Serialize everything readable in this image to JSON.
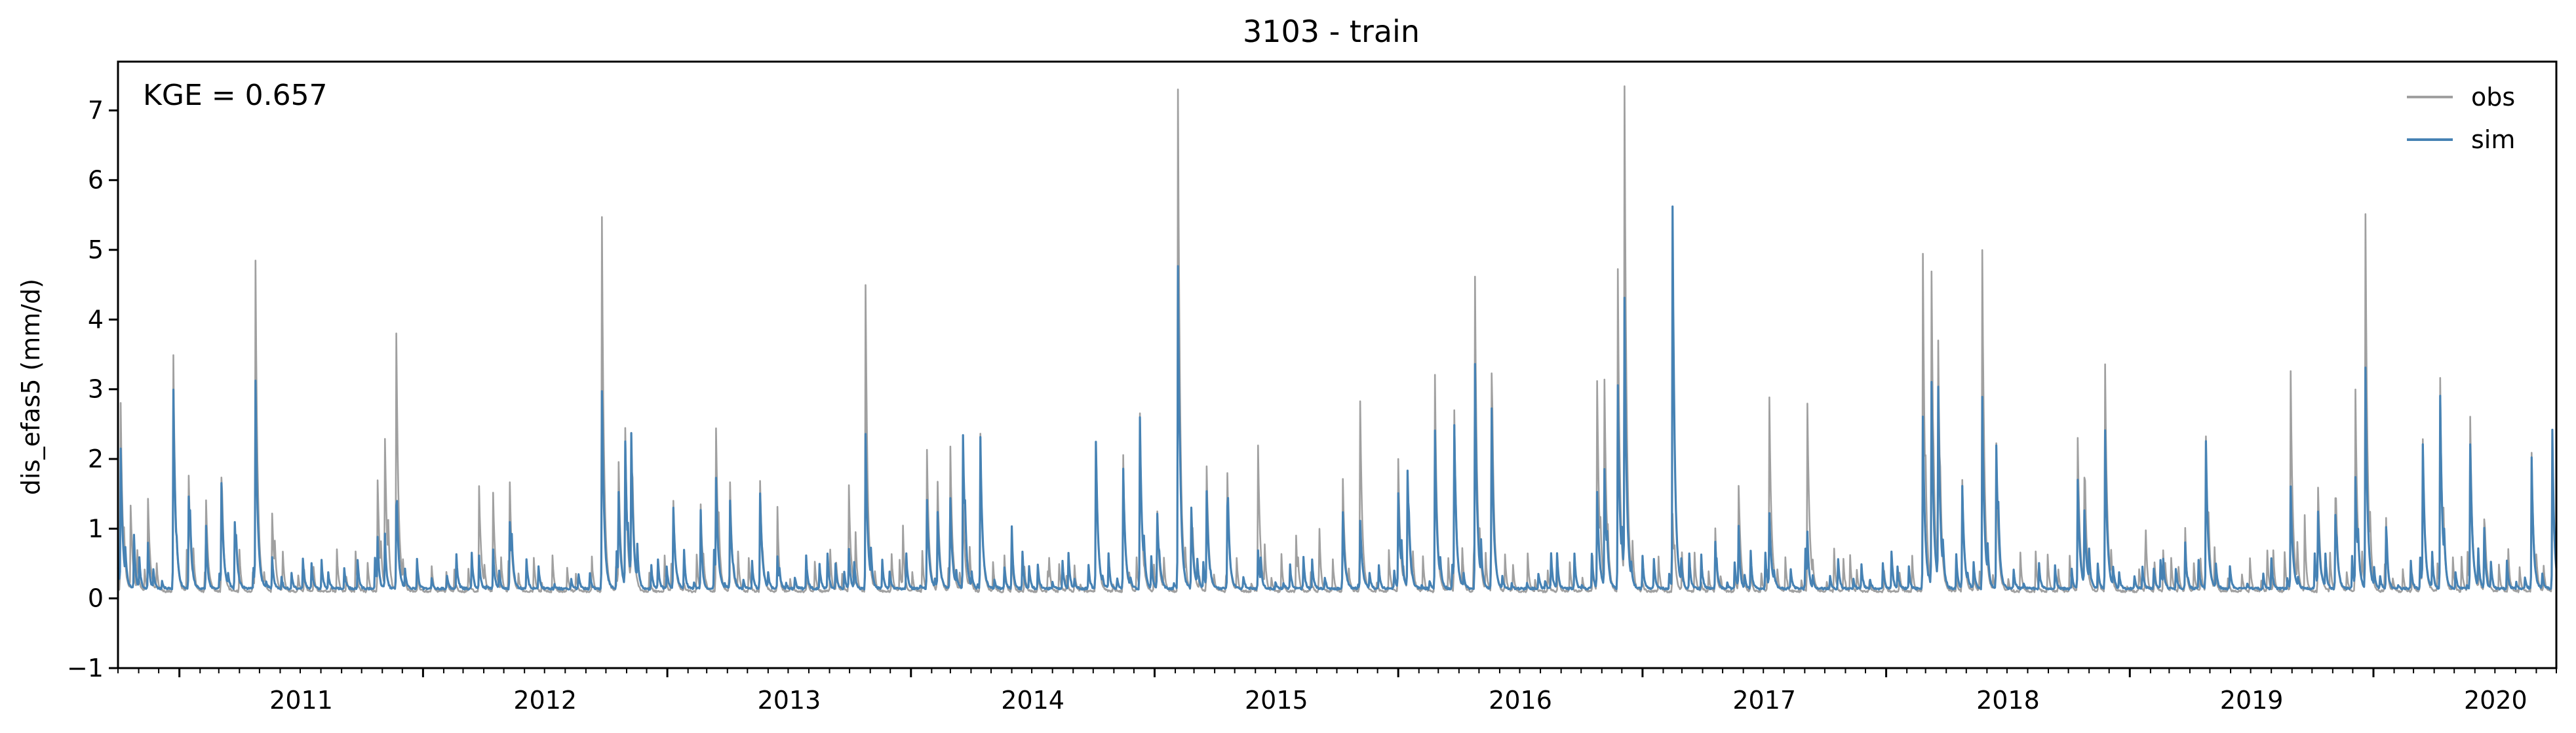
{
  "chart_data": {
    "type": "line",
    "title": "3103 - train",
    "xlabel": "",
    "ylabel": "dis_efas5 (mm/d)",
    "annotation": "KGE = 0.657",
    "legend_position": "top-right",
    "grid": false,
    "xlim": [
      "2010-10-01",
      "2020-10-01"
    ],
    "ylim": [
      -1,
      7.7
    ],
    "x_ticks": [
      "2011",
      "2012",
      "2013",
      "2014",
      "2015",
      "2016",
      "2017",
      "2018",
      "2019",
      "2020"
    ],
    "y_ticks": [
      "−1",
      "0",
      "1",
      "2",
      "3",
      "4",
      "5",
      "6",
      "7"
    ],
    "baseline": {
      "obs": 0.1,
      "sim": 0.14
    },
    "series": [
      {
        "name": "obs",
        "color": "#a0a0a0",
        "peaks": [
          [
            "2010-10-05",
            2.8
          ],
          [
            "2010-10-20",
            1.3
          ],
          [
            "2010-11-15",
            1.4
          ],
          [
            "2010-12-23",
            3.45
          ],
          [
            "2011-01-15",
            1.6
          ],
          [
            "2011-02-10",
            1.3
          ],
          [
            "2011-03-05",
            1.7
          ],
          [
            "2011-04-25",
            4.8
          ],
          [
            "2011-05-20",
            1.2
          ],
          [
            "2011-06-05",
            0.6
          ],
          [
            "2011-08-25",
            0.7
          ],
          [
            "2011-10-25",
            1.7
          ],
          [
            "2011-11-05",
            2.2
          ],
          [
            "2011-11-22",
            3.8
          ],
          [
            "2012-03-25",
            1.6
          ],
          [
            "2012-04-15",
            1.5
          ],
          [
            "2012-05-10",
            1.5
          ],
          [
            "2012-09-25",
            4.97
          ],
          [
            "2012-10-20",
            1.9
          ],
          [
            "2012-10-30",
            2.35
          ],
          [
            "2012-11-08",
            2.25
          ],
          [
            "2013-01-10",
            1.3
          ],
          [
            "2013-02-20",
            1.3
          ],
          [
            "2013-03-15",
            2.45
          ],
          [
            "2013-04-05",
            1.6
          ],
          [
            "2013-05-20",
            1.7
          ],
          [
            "2013-06-15",
            0.8
          ],
          [
            "2013-09-30",
            1.3
          ],
          [
            "2013-10-10",
            0.9
          ],
          [
            "2013-10-25",
            3.9
          ],
          [
            "2013-12-20",
            1.0
          ],
          [
            "2014-01-25",
            2.1
          ],
          [
            "2014-02-10",
            1.4
          ],
          [
            "2014-03-01",
            2.1
          ],
          [
            "2014-03-20",
            1.4
          ],
          [
            "2014-04-15",
            2.3
          ],
          [
            "2014-06-01",
            0.6
          ],
          [
            "2014-07-25",
            0.4
          ],
          [
            "2014-10-05",
            2.2
          ],
          [
            "2014-11-15",
            1.7
          ],
          [
            "2014-12-10",
            2.6
          ],
          [
            "2015-01-05",
            1.2
          ],
          [
            "2015-02-05",
            7.3
          ],
          [
            "2015-02-25",
            1.3
          ],
          [
            "2015-03-20",
            1.9
          ],
          [
            "2015-04-20",
            1.7
          ],
          [
            "2015-06-05",
            2.2
          ],
          [
            "2015-08-01",
            0.9
          ],
          [
            "2015-09-05",
            0.9
          ],
          [
            "2015-10-10",
            1.7
          ],
          [
            "2015-11-05",
            2.65
          ],
          [
            "2016-01-01",
            2.0
          ],
          [
            "2016-01-15",
            1.8
          ],
          [
            "2016-02-25",
            2.7
          ],
          [
            "2016-03-25",
            2.7
          ],
          [
            "2016-04-25",
            4.4
          ],
          [
            "2016-05-20",
            3.2
          ],
          [
            "2016-10-25",
            3.1
          ],
          [
            "2016-11-05",
            3.0
          ],
          [
            "2016-11-25",
            4.5
          ],
          [
            "2016-12-05",
            7.0
          ],
          [
            "2017-02-15",
            1.2
          ],
          [
            "2017-04-20",
            1.0
          ],
          [
            "2017-05-25",
            1.6
          ],
          [
            "2017-07-10",
            2.8
          ],
          [
            "2017-09-05",
            2.8
          ],
          [
            "2017-10-15",
            0.7
          ],
          [
            "2018-02-25",
            4.95
          ],
          [
            "2018-03-10",
            4.6
          ],
          [
            "2018-03-20",
            3.5
          ],
          [
            "2018-04-25",
            1.7
          ],
          [
            "2018-05-25",
            4.95
          ],
          [
            "2018-06-15",
            2.2
          ],
          [
            "2018-10-15",
            2.3
          ],
          [
            "2018-10-25",
            1.6
          ],
          [
            "2018-11-25",
            3.35
          ],
          [
            "2019-01-25",
            0.7
          ],
          [
            "2019-02-20",
            0.7
          ],
          [
            "2019-03-25",
            1.0
          ],
          [
            "2019-04-25",
            2.3
          ],
          [
            "2019-08-30",
            3.25
          ],
          [
            "2019-09-20",
            1.0
          ],
          [
            "2019-10-10",
            1.6
          ],
          [
            "2019-11-05",
            1.4
          ],
          [
            "2019-12-05",
            3.0
          ],
          [
            "2019-12-20",
            5.45
          ],
          [
            "2020-01-20",
            1.0
          ],
          [
            "2020-03-15",
            2.2
          ],
          [
            "2020-04-10",
            3.1
          ],
          [
            "2020-05-25",
            2.5
          ],
          [
            "2020-06-15",
            1.1
          ],
          [
            "2020-08-25",
            2.1
          ],
          [
            "2020-09-25",
            2.0
          ]
        ]
      },
      {
        "name": "sim",
        "color": "#4682b4",
        "peaks": [
          [
            "2010-10-05",
            2.1
          ],
          [
            "2010-10-25",
            0.9
          ],
          [
            "2010-11-15",
            0.8
          ],
          [
            "2010-12-23",
            3.0
          ],
          [
            "2011-01-15",
            1.45
          ],
          [
            "2011-02-10",
            1.0
          ],
          [
            "2011-03-05",
            1.6
          ],
          [
            "2011-03-25",
            1.1
          ],
          [
            "2011-04-25",
            3.05
          ],
          [
            "2011-05-20",
            0.6
          ],
          [
            "2011-10-25",
            0.8
          ],
          [
            "2011-11-05",
            0.9
          ],
          [
            "2011-11-22",
            1.3
          ],
          [
            "2012-03-25",
            0.6
          ],
          [
            "2012-04-15",
            0.7
          ],
          [
            "2012-05-10",
            1.1
          ],
          [
            "2012-09-25",
            2.95
          ],
          [
            "2012-10-20",
            1.4
          ],
          [
            "2012-10-30",
            2.2
          ],
          [
            "2012-11-08",
            2.2
          ],
          [
            "2013-01-10",
            1.3
          ],
          [
            "2013-02-20",
            0.9
          ],
          [
            "2013-03-15",
            1.6
          ],
          [
            "2013-04-05",
            1.4
          ],
          [
            "2013-05-20",
            1.5
          ],
          [
            "2013-06-15",
            0.6
          ],
          [
            "2013-09-30",
            0.7
          ],
          [
            "2013-10-25",
            2.35
          ],
          [
            "2014-01-25",
            1.4
          ],
          [
            "2014-02-10",
            1.2
          ],
          [
            "2014-03-01",
            1.2
          ],
          [
            "2014-03-20",
            2.35
          ],
          [
            "2014-04-15",
            2.3
          ],
          [
            "2014-06-01",
            0.5
          ],
          [
            "2014-10-05",
            2.25
          ],
          [
            "2014-11-15",
            1.7
          ],
          [
            "2014-12-10",
            2.6
          ],
          [
            "2015-01-05",
            1.2
          ],
          [
            "2015-02-05",
            4.75
          ],
          [
            "2015-02-25",
            1.3
          ],
          [
            "2015-03-20",
            1.5
          ],
          [
            "2015-04-20",
            1.3
          ],
          [
            "2015-06-05",
            0.7
          ],
          [
            "2015-10-10",
            1.2
          ],
          [
            "2015-11-05",
            1.1
          ],
          [
            "2016-01-01",
            1.5
          ],
          [
            "2016-01-15",
            1.8
          ],
          [
            "2016-02-25",
            2.4
          ],
          [
            "2016-03-25",
            2.4
          ],
          [
            "2016-04-25",
            3.35
          ],
          [
            "2016-05-20",
            2.5
          ],
          [
            "2016-10-25",
            1.5
          ],
          [
            "2016-11-05",
            1.8
          ],
          [
            "2016-11-25",
            3.05
          ],
          [
            "2016-12-05",
            4.1
          ],
          [
            "2017-02-15",
            5.6
          ],
          [
            "2017-04-20",
            0.8
          ],
          [
            "2017-05-25",
            1.0
          ],
          [
            "2017-07-10",
            1.2
          ],
          [
            "2017-09-05",
            0.8
          ],
          [
            "2018-02-25",
            2.6
          ],
          [
            "2018-03-10",
            3.05
          ],
          [
            "2018-03-20",
            2.9
          ],
          [
            "2018-04-25",
            1.6
          ],
          [
            "2018-05-25",
            2.9
          ],
          [
            "2018-06-15",
            2.2
          ],
          [
            "2018-10-15",
            1.7
          ],
          [
            "2018-10-25",
            1.2
          ],
          [
            "2018-11-25",
            2.4
          ],
          [
            "2019-02-20",
            0.5
          ],
          [
            "2019-03-25",
            0.8
          ],
          [
            "2019-04-25",
            2.25
          ],
          [
            "2019-08-30",
            1.6
          ],
          [
            "2019-10-10",
            1.2
          ],
          [
            "2019-11-05",
            1.2
          ],
          [
            "2019-12-05",
            1.7
          ],
          [
            "2019-12-20",
            3.3
          ],
          [
            "2020-01-20",
            1.0
          ],
          [
            "2020-03-15",
            2.15
          ],
          [
            "2020-04-10",
            2.9
          ],
          [
            "2020-05-25",
            2.2
          ],
          [
            "2020-06-15",
            1.0
          ],
          [
            "2020-08-25",
            1.5
          ],
          [
            "2020-09-25",
            1.85
          ]
        ]
      }
    ]
  }
}
